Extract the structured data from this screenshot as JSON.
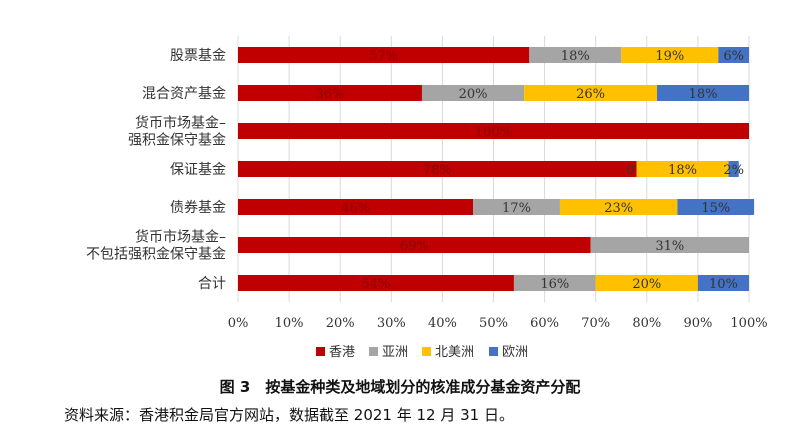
{
  "chart_data": {
    "type": "bar",
    "stacked": true,
    "orientation": "horizontal",
    "categories": [
      [
        "股票基金"
      ],
      [
        "混合资产基金"
      ],
      [
        "货币市场基金–",
        "强积金保守基金"
      ],
      [
        "保证基金"
      ],
      [
        "债券基金"
      ],
      [
        "货币市场基金–",
        "不包括强积金保守基金"
      ],
      [
        "合计"
      ]
    ],
    "series": [
      {
        "name": "香港",
        "color": "#c00000",
        "values": [
          57,
          36,
          100,
          78,
          46,
          69,
          54
        ],
        "labels": [
          "57%",
          "36%",
          "100%",
          "78%",
          "46%",
          "69%",
          "54%"
        ]
      },
      {
        "name": "亚洲",
        "color": "#a5a5a5",
        "values": [
          18,
          20,
          0,
          0,
          17,
          31,
          16
        ],
        "labels": [
          "18%",
          "20%",
          "",
          "0%",
          "17%",
          "31%",
          "16%"
        ]
      },
      {
        "name": "北美洲",
        "color": "#ffc000",
        "values": [
          19,
          26,
          0,
          18,
          23,
          0,
          20
        ],
        "labels": [
          "19%",
          "26%",
          "",
          "18%",
          "23%",
          "",
          "20%"
        ]
      },
      {
        "name": "欧洲",
        "color": "#4472c4",
        "values": [
          6,
          18,
          0,
          2,
          15,
          0,
          10
        ],
        "labels": [
          "6%",
          "18%",
          "",
          "2%",
          "15%",
          "",
          "10%"
        ]
      }
    ],
    "xlim": [
      0,
      100
    ],
    "xticks": [
      "0%",
      "10%",
      "20%",
      "30%",
      "40%",
      "50%",
      "60%",
      "70%",
      "80%",
      "90%",
      "100%"
    ],
    "grid": true,
    "legend": "bottom"
  },
  "caption": "图 3　按基金种类及地域划分的核准成分基金资产分配",
  "source": "资料来源：香港积金局官方网站，数据截至 2021 年 12 月 31 日。"
}
